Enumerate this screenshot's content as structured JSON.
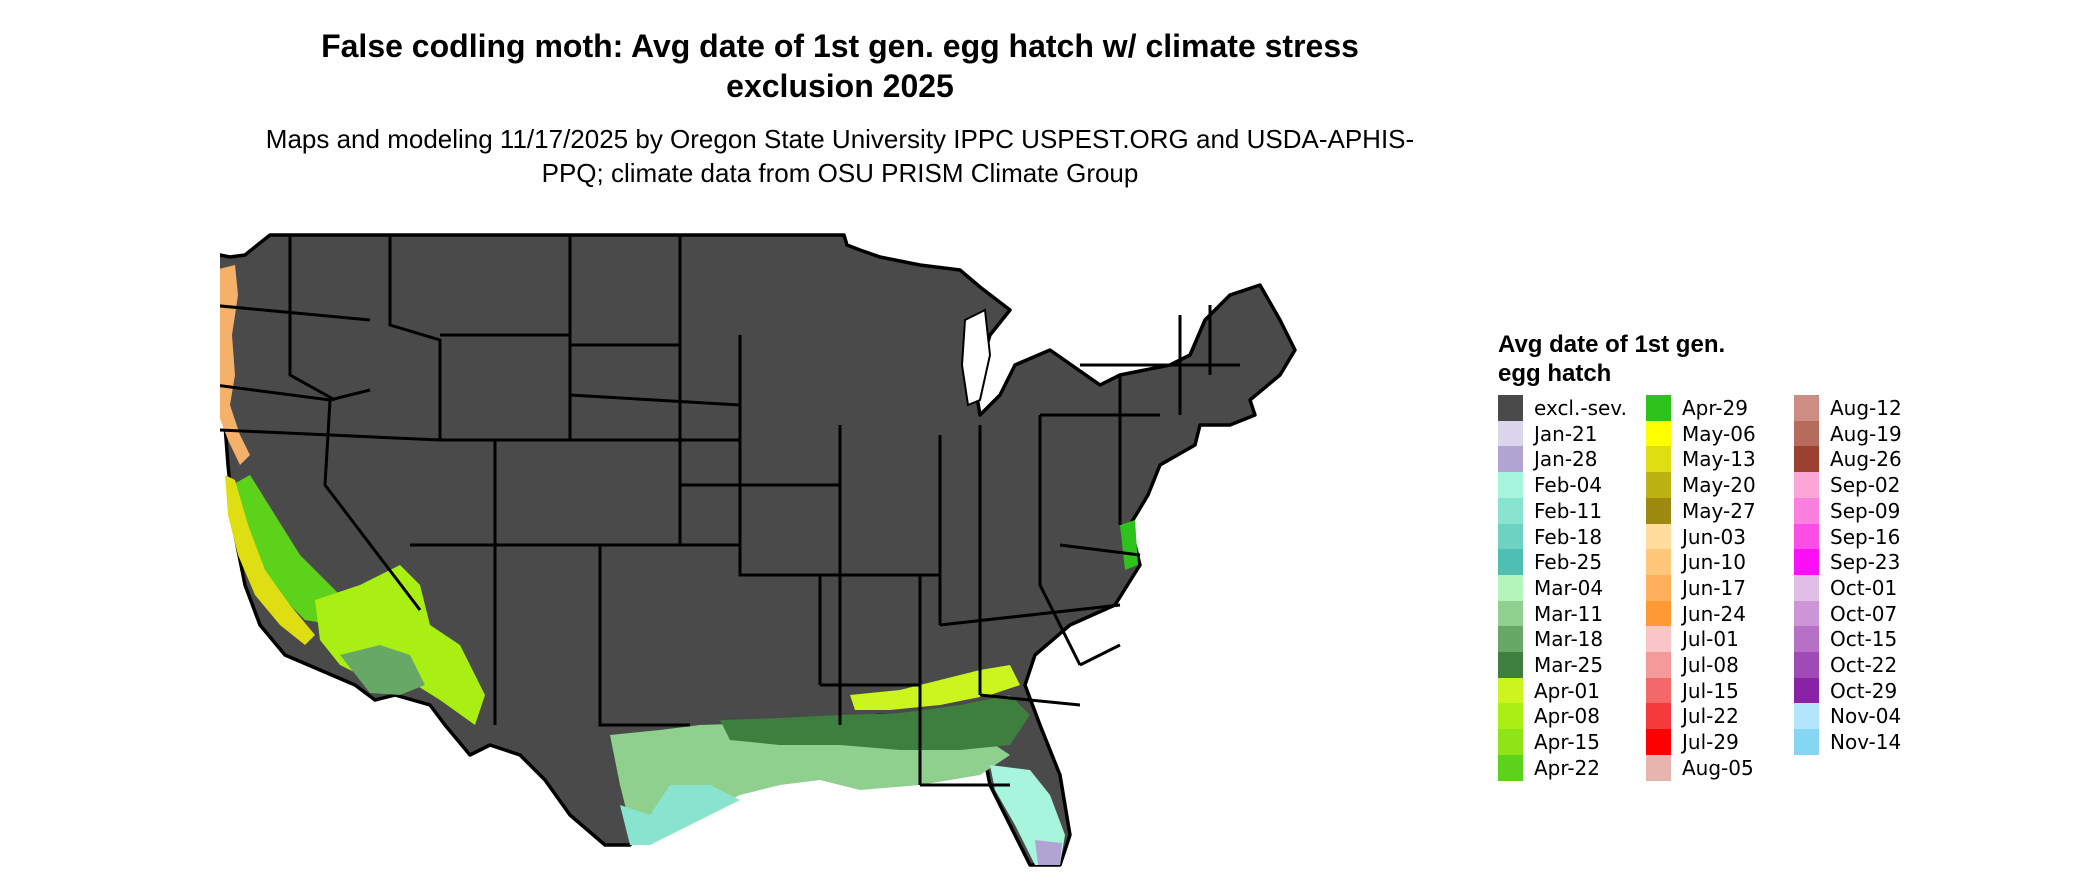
{
  "title": "False codling moth: Avg date of 1st gen. egg hatch w/ climate stress exclusion 2025",
  "subtitle": "Maps and modeling 11/17/2025 by Oregon State University IPPC USPEST.ORG and USDA-APHIS-PPQ; climate data from OSU PRISM Climate Group",
  "legend": {
    "title": "Avg date of 1st gen. egg hatch",
    "items": [
      {
        "label": "excl.-sev.",
        "color": "#4a4a4a"
      },
      {
        "label": "Jan-21",
        "color": "#dcd6ec"
      },
      {
        "label": "Jan-28",
        "color": "#b1a4d3"
      },
      {
        "label": "Feb-04",
        "color": "#a6f5dc"
      },
      {
        "label": "Feb-11",
        "color": "#88e3cf"
      },
      {
        "label": "Feb-18",
        "color": "#6ed2c3"
      },
      {
        "label": "Feb-25",
        "color": "#4fbfb3"
      },
      {
        "label": "Mar-04",
        "color": "#b4f5bc"
      },
      {
        "label": "Mar-11",
        "color": "#8fd08f"
      },
      {
        "label": "Mar-18",
        "color": "#67a867"
      },
      {
        "label": "Mar-25",
        "color": "#3e7e3e"
      },
      {
        "label": "Apr-01",
        "color": "#ccf51f"
      },
      {
        "label": "Apr-08",
        "color": "#a9ef14"
      },
      {
        "label": "Apr-15",
        "color": "#8fe418"
      },
      {
        "label": "Apr-22",
        "color": "#5dd21b"
      },
      {
        "label": "Apr-29",
        "color": "#2dc21c"
      },
      {
        "label": "May-06",
        "color": "#ffff00"
      },
      {
        "label": "May-13",
        "color": "#dede12"
      },
      {
        "label": "May-20",
        "color": "#bcb214"
      },
      {
        "label": "May-27",
        "color": "#9c8910"
      },
      {
        "label": "Jun-03",
        "color": "#ffdd9c"
      },
      {
        "label": "Jun-10",
        "color": "#ffc779"
      },
      {
        "label": "Jun-17",
        "color": "#ffb05a"
      },
      {
        "label": "Jun-24",
        "color": "#fe9a34"
      },
      {
        "label": "Jul-01",
        "color": "#f8c6c6"
      },
      {
        "label": "Jul-08",
        "color": "#f59a9a"
      },
      {
        "label": "Jul-15",
        "color": "#f36868"
      },
      {
        "label": "Jul-22",
        "color": "#f43a3a"
      },
      {
        "label": "Jul-29",
        "color": "#fd0000"
      },
      {
        "label": "Aug-05",
        "color": "#e6b6ae"
      },
      {
        "label": "Aug-12",
        "color": "#cd8d82"
      },
      {
        "label": "Aug-19",
        "color": "#b66b5f"
      },
      {
        "label": "Aug-26",
        "color": "#9c4132"
      },
      {
        "label": "Sep-02",
        "color": "#fba6d7"
      },
      {
        "label": "Sep-09",
        "color": "#fb7fdc"
      },
      {
        "label": "Sep-16",
        "color": "#fa4ee6"
      },
      {
        "label": "Sep-23",
        "color": "#fb0ff7"
      },
      {
        "label": "Oct-01",
        "color": "#e0bfe4"
      },
      {
        "label": "Oct-07",
        "color": "#cc95d5"
      },
      {
        "label": "Oct-15",
        "color": "#b670c5"
      },
      {
        "label": "Oct-22",
        "color": "#a04ab6"
      },
      {
        "label": "Oct-29",
        "color": "#8a22a6"
      },
      {
        "label": "Nov-04",
        "color": "#b3e6fb"
      },
      {
        "label": "Nov-14",
        "color": "#85d5f3"
      }
    ]
  }
}
